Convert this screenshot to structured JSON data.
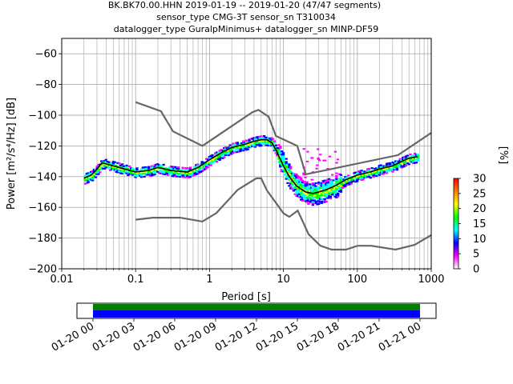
{
  "title_lines": [
    "BK.BK70.00.HHN   2019-01-19 -- 2019-01-20  (47/47 segments)",
    "sensor_type CMG-3T sensor_sn T310034",
    "datalogger_type GuralpMinimus+ datalogger_sn MINP-DF59"
  ],
  "colors": {
    "grid": "#b0b0b0",
    "noise_models": "#666666",
    "mode_line": "#000000",
    "timeline_top": "#008000",
    "timeline_bottom": "#0000ff"
  },
  "chart_data": {
    "type": "heatmap",
    "title": "BK.BK70.00.HHN   2019-01-19 -- 2019-01-20  (47/47 segments)",
    "xlabel": "Period [s]",
    "ylabel": "Power [m²/s⁴/Hz] [dB]",
    "xscale": "log",
    "xlim": [
      0.01,
      1000
    ],
    "ylim": [
      -200,
      -50
    ],
    "x_ticks": [
      0.01,
      0.1,
      1,
      10,
      100,
      1000
    ],
    "x_tick_labels": [
      "0.01",
      "0.1",
      "1",
      "10",
      "100",
      "1000"
    ],
    "y_ticks": [
      -200,
      -180,
      -160,
      -140,
      -120,
      -100,
      -80,
      -60
    ],
    "y_tick_labels": [
      "−200",
      "−180",
      "−160",
      "−140",
      "−120",
      "−100",
      "−80",
      "−60"
    ],
    "grid": true,
    "colorbar": {
      "label": "[%]",
      "min": 0,
      "max": 30,
      "ticks": [
        0,
        5,
        10,
        15,
        20,
        25,
        30
      ],
      "tick_labels": [
        "0",
        "5",
        "10",
        "15",
        "20",
        "25",
        "30"
      ],
      "colors": [
        "#ffffff",
        "#ff00ff",
        "#0000ff",
        "#00ffff",
        "#00ff00",
        "#ffff00",
        "#ff8000",
        "#ff0000"
      ]
    },
    "nhnm": {
      "name": "New High Noise Model",
      "periods": [
        0.1,
        0.22,
        0.32,
        0.8,
        3.8,
        4.6,
        6.3,
        7.9,
        15.4,
        20,
        354.8,
        1000
      ],
      "values": [
        -91.5,
        -97.4,
        -110.5,
        -120,
        -98,
        -96.5,
        -101,
        -113.5,
        -120,
        -138.5,
        -126,
        -111.5
      ]
    },
    "nlnm": {
      "name": "New Low Noise Model",
      "periods": [
        0.1,
        0.17,
        0.4,
        0.8,
        1.24,
        2.4,
        4.3,
        5.0,
        6.0,
        10.0,
        12.0,
        15.6,
        21.9,
        31.6,
        45,
        70,
        101,
        154,
        328,
        600,
        1000
      ],
      "values": [
        -168,
        -166.7,
        -166.7,
        -169.2,
        -163.7,
        -148.6,
        -141.1,
        -141.1,
        -149,
        -163.8,
        -166.2,
        -162.1,
        -177.5,
        -185,
        -187.5,
        -187.5,
        -185,
        -185,
        -187.5,
        -184.4,
        -178
      ]
    },
    "mode": {
      "name": "Mode",
      "periods": [
        0.02,
        0.025,
        0.03,
        0.035,
        0.05,
        0.07,
        0.1,
        0.15,
        0.2,
        0.3,
        0.5,
        0.7,
        1.0,
        1.5,
        2.0,
        3.0,
        4.0,
        5.0,
        6.0,
        7.0,
        8.0,
        10.0,
        12.0,
        15.0,
        20.0,
        25.0,
        30.0,
        40.0,
        50.0,
        70.0,
        100.0,
        150.0,
        200.0,
        300.0,
        400.0,
        500.0,
        650.0
      ],
      "values": [
        -141,
        -139,
        -135,
        -131,
        -133,
        -135,
        -137,
        -136,
        -134,
        -136,
        -137,
        -134,
        -129,
        -124,
        -121,
        -119,
        -117,
        -116,
        -116,
        -118,
        -123,
        -133,
        -140,
        -146,
        -150,
        -151,
        -150,
        -148,
        -146,
        -142,
        -139,
        -137,
        -135,
        -133,
        -130,
        -128,
        -127
      ]
    },
    "timeline": {
      "tick_labels": [
        "01-20 00",
        "01-20 03",
        "01-20 06",
        "01-20 09",
        "01-20 12",
        "01-20 15",
        "01-20 18",
        "01-20 21",
        "01-21 00"
      ],
      "coverage": "full day"
    }
  }
}
